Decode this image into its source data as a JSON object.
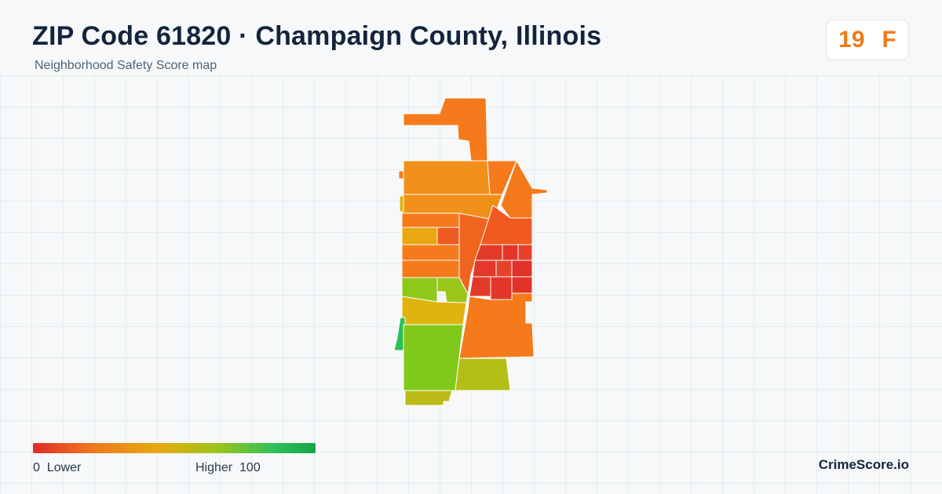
{
  "header": {
    "title": "ZIP Code 61820 · Champaign County, Illinois",
    "subtitle": "Neighborhood Safety Score map"
  },
  "score": {
    "value": "19",
    "grade": "F",
    "color": "#ef7a1a"
  },
  "legend": {
    "low_value": "0",
    "low_label": "Lower",
    "high_label": "Higher",
    "high_value": "100",
    "gradient_colors": [
      "#e02a27",
      "#f0751e",
      "#e6ab10",
      "#9cc31a",
      "#2fc05a",
      "#17a34a"
    ]
  },
  "brand": "CrimeScore.io",
  "map": {
    "region": "61820",
    "score_scale": [
      0,
      100
    ],
    "polygon_colors": {
      "red": "#e23a28",
      "orange_red": "#f0591f",
      "orange": "#f47a1b",
      "orange_light": "#f0901a",
      "yellow_orange": "#eaa712",
      "yellow": "#dbb20f",
      "olive": "#b5c014",
      "yellow_green": "#8ec81a",
      "green": "#7dc91c",
      "bright_green": "#2dbf55"
    }
  }
}
